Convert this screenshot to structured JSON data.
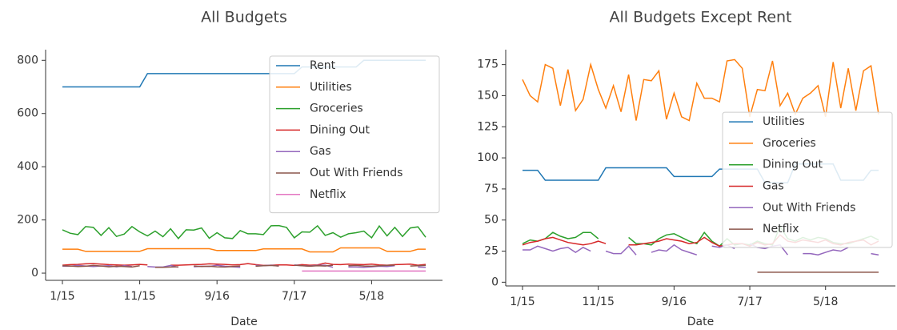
{
  "chart_data": [
    {
      "type": "line",
      "title": "All Budgets",
      "x_label": "Date",
      "categories": [
        "1/15",
        null,
        null,
        null,
        null,
        null,
        null,
        null,
        null,
        null,
        "11/15",
        null,
        null,
        null,
        null,
        null,
        null,
        null,
        null,
        null,
        "9/16",
        null,
        null,
        null,
        null,
        null,
        null,
        null,
        null,
        null,
        "7/17",
        null,
        null,
        null,
        null,
        null,
        null,
        null,
        null,
        null,
        "5/18",
        null,
        null,
        null,
        null,
        null,
        null,
        null
      ],
      "ylim": [
        -27,
        840
      ],
      "yticks": [
        0,
        200,
        400,
        600,
        800
      ],
      "legend": "upper right",
      "series": [
        {
          "name": "Rent",
          "color": "#1f77b4",
          "values": [
            700,
            700,
            700,
            700,
            700,
            700,
            700,
            700,
            700,
            700,
            700,
            750,
            750,
            750,
            750,
            750,
            750,
            750,
            750,
            750,
            750,
            750,
            750,
            750,
            750,
            750,
            750,
            750,
            750,
            750,
            750,
            775,
            775,
            775,
            775,
            775,
            775,
            775,
            775,
            800,
            800,
            800,
            800,
            800,
            800,
            800,
            800,
            800
          ]
        },
        {
          "name": "Utilities",
          "color": "#ff7f0e",
          "values": [
            90,
            90,
            90,
            82,
            82,
            82,
            82,
            82,
            82,
            82,
            82,
            92,
            92,
            92,
            92,
            92,
            92,
            92,
            92,
            92,
            85,
            85,
            85,
            85,
            85,
            85,
            91,
            91,
            91,
            91,
            91,
            91,
            80,
            80,
            80,
            80,
            95,
            95,
            95,
            95,
            95,
            95,
            82,
            82,
            82,
            82,
            90,
            90
          ]
        },
        {
          "name": "Groceries",
          "color": "#2ca02c",
          "values": [
            163,
            150,
            145,
            175,
            172,
            142,
            171,
            138,
            147,
            175,
            155,
            140,
            158,
            137,
            167,
            130,
            163,
            162,
            170,
            131,
            152,
            133,
            130,
            160,
            148,
            148,
            145,
            178,
            179,
            172,
            133,
            155,
            154,
            178,
            142,
            152,
            135,
            148,
            152,
            158,
            133,
            177,
            140,
            172,
            138,
            170,
            174,
            135
          ]
        },
        {
          "name": "Dining Out",
          "color": "#d62728",
          "values": [
            30,
            32,
            33,
            35,
            36,
            34,
            32,
            31,
            30,
            31,
            33,
            31,
            null,
            null,
            30,
            30,
            31,
            32,
            33,
            35,
            34,
            33,
            31,
            32,
            36,
            32,
            29,
            30,
            31,
            31,
            29,
            32,
            30,
            31,
            38,
            33,
            32,
            34,
            33,
            32,
            34,
            31,
            30,
            32,
            33,
            34,
            30,
            33
          ]
        },
        {
          "name": "Gas",
          "color": "#9467bd",
          "values": [
            26,
            26,
            29,
            27,
            25,
            27,
            28,
            24,
            28,
            25,
            null,
            25,
            23,
            23,
            29,
            22,
            null,
            24,
            26,
            25,
            30,
            26,
            24,
            22,
            null,
            29,
            28,
            30,
            27,
            null,
            31,
            28,
            27,
            29,
            30,
            22,
            null,
            23,
            23,
            22,
            24,
            26,
            25,
            28,
            null,
            null,
            23,
            22
          ]
        },
        {
          "name": "Out With Friends",
          "color": "#8c564b",
          "values": [
            28,
            27,
            25,
            26,
            29,
            27,
            24,
            26,
            25,
            23,
            28,
            null,
            22,
            22,
            23,
            24,
            null,
            27,
            25,
            26,
            24,
            23,
            25,
            27,
            null,
            26,
            28,
            29,
            27,
            null,
            30,
            28,
            26,
            28,
            27,
            30,
            null,
            28,
            29,
            27,
            26,
            28,
            29,
            30,
            null,
            27,
            28,
            29
          ]
        },
        {
          "name": "Netflix",
          "color": "#e377c2",
          "values": [
            null,
            null,
            null,
            null,
            null,
            null,
            null,
            null,
            null,
            null,
            null,
            null,
            null,
            null,
            null,
            null,
            null,
            null,
            null,
            null,
            null,
            null,
            null,
            null,
            null,
            null,
            null,
            null,
            null,
            null,
            null,
            8,
            8,
            8,
            8,
            8,
            8,
            8,
            8,
            8,
            8,
            8,
            8,
            8,
            8,
            8,
            8,
            8
          ]
        }
      ]
    },
    {
      "type": "line",
      "title": "All Budgets Except Rent",
      "x_label": "Date",
      "categories": [
        "1/15",
        null,
        null,
        null,
        null,
        null,
        null,
        null,
        null,
        null,
        "11/15",
        null,
        null,
        null,
        null,
        null,
        null,
        null,
        null,
        null,
        "9/16",
        null,
        null,
        null,
        null,
        null,
        null,
        null,
        null,
        null,
        "7/17",
        null,
        null,
        null,
        null,
        null,
        null,
        null,
        null,
        null,
        "5/18",
        null,
        null,
        null,
        null,
        null,
        null,
        null
      ],
      "ylim": [
        -3,
        187
      ],
      "yticks": [
        0,
        25,
        50,
        75,
        100,
        125,
        150,
        175
      ],
      "legend": "center right",
      "series": [
        {
          "name": "Utilities",
          "color": "#1f77b4",
          "values": [
            90,
            90,
            90,
            82,
            82,
            82,
            82,
            82,
            82,
            82,
            82,
            92,
            92,
            92,
            92,
            92,
            92,
            92,
            92,
            92,
            85,
            85,
            85,
            85,
            85,
            85,
            91,
            91,
            91,
            91,
            91,
            91,
            80,
            80,
            80,
            80,
            95,
            95,
            95,
            95,
            95,
            95,
            82,
            82,
            82,
            82,
            90,
            90
          ]
        },
        {
          "name": "Groceries",
          "color": "#ff7f0e",
          "values": [
            163,
            150,
            145,
            175,
            172,
            142,
            171,
            138,
            147,
            175,
            155,
            140,
            158,
            137,
            167,
            130,
            163,
            162,
            170,
            131,
            152,
            133,
            130,
            160,
            148,
            148,
            145,
            178,
            179,
            172,
            133,
            155,
            154,
            178,
            142,
            152,
            135,
            148,
            152,
            158,
            133,
            177,
            140,
            172,
            138,
            170,
            174,
            135
          ]
        },
        {
          "name": "Dining Out",
          "color": "#2ca02c",
          "values": [
            31,
            34,
            33,
            35,
            40,
            37,
            35,
            36,
            40,
            40,
            35,
            null,
            34,
            null,
            36,
            31,
            31,
            30,
            35,
            38,
            39,
            36,
            33,
            31,
            40,
            33,
            29,
            35,
            30,
            31,
            30,
            33,
            31,
            30,
            45,
            35,
            33,
            36,
            34,
            36,
            35,
            32,
            31,
            31,
            33,
            35,
            37,
            34
          ]
        },
        {
          "name": "Gas",
          "color": "#d62728",
          "values": [
            30,
            32,
            33,
            35,
            36,
            34,
            32,
            31,
            30,
            31,
            33,
            31,
            null,
            null,
            30,
            30,
            31,
            32,
            33,
            35,
            34,
            33,
            31,
            32,
            36,
            32,
            29,
            30,
            31,
            31,
            29,
            32,
            30,
            31,
            38,
            33,
            32,
            34,
            33,
            32,
            34,
            31,
            30,
            32,
            33,
            34,
            30,
            33
          ]
        },
        {
          "name": "Out With Friends",
          "color": "#9467bd",
          "values": [
            26,
            26,
            29,
            27,
            25,
            27,
            28,
            24,
            28,
            25,
            null,
            25,
            23,
            23,
            29,
            22,
            null,
            24,
            26,
            25,
            30,
            26,
            24,
            22,
            null,
            29,
            28,
            30,
            27,
            null,
            31,
            28,
            27,
            29,
            30,
            22,
            null,
            23,
            23,
            22,
            24,
            26,
            25,
            28,
            null,
            null,
            23,
            22
          ]
        },
        {
          "name": "Netflix",
          "color": "#8c564b",
          "values": [
            null,
            null,
            null,
            null,
            null,
            null,
            null,
            null,
            null,
            null,
            null,
            null,
            null,
            null,
            null,
            null,
            null,
            null,
            null,
            null,
            null,
            null,
            null,
            null,
            null,
            null,
            null,
            null,
            null,
            null,
            null,
            8,
            8,
            8,
            8,
            8,
            8,
            8,
            8,
            8,
            8,
            8,
            8,
            8,
            8,
            8,
            8,
            8
          ]
        }
      ]
    }
  ]
}
